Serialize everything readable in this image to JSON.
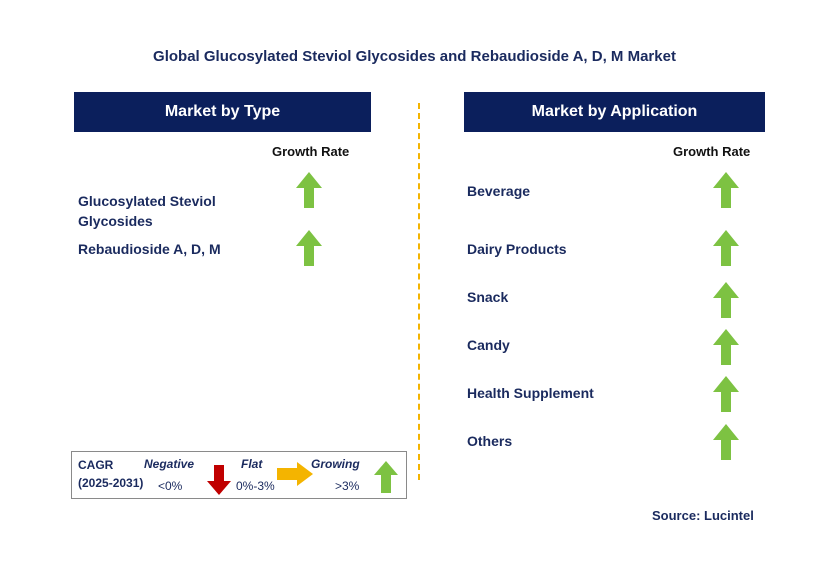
{
  "title": "Global Glucosylated Steviol Glycosides and Rebaudioside A, D, M Market",
  "left_panel": {
    "header": "Market by Type",
    "growth_label": "Growth Rate",
    "items": [
      {
        "line1": "Glucosylated Steviol",
        "line2": "Glycosides",
        "trend": "growing"
      },
      {
        "line1": "Rebaudioside A, D, M",
        "trend": "growing"
      }
    ]
  },
  "right_panel": {
    "header": "Market by Application",
    "growth_label": "Growth Rate",
    "items": [
      {
        "label": "Beverage",
        "trend": "growing"
      },
      {
        "label": "Dairy Products",
        "trend": "growing"
      },
      {
        "label": "Snack",
        "trend": "growing"
      },
      {
        "label": "Candy",
        "trend": "growing"
      },
      {
        "label": "Health Supplement",
        "trend": "growing"
      },
      {
        "label": "Others",
        "trend": "growing"
      }
    ]
  },
  "legend": {
    "cagr": "CAGR",
    "years": "(2025-2031)",
    "negative": "Negative",
    "negative_range": "<0%",
    "flat": "Flat",
    "flat_range": "0%-3%",
    "growing": "Growing",
    "growing_range": ">3%"
  },
  "source": "Source: Lucintel",
  "colors": {
    "header_bg": "#0b1f5c",
    "up_arrow": "#7dc242",
    "down_arrow": "#c00000",
    "flat_arrow": "#f4b400",
    "divider": "#f4b400"
  }
}
